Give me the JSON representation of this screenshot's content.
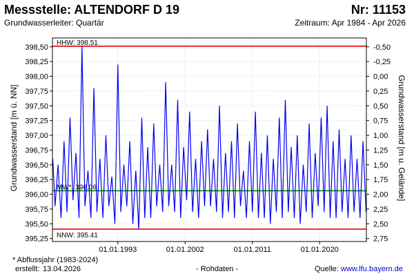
{
  "header": {
    "title_left": "Messstelle: ALTENDORF D 19",
    "title_right": "Nr: 11153",
    "subtitle_left": "Grundwasserleiter: Quartär",
    "subtitle_right": "Zeitraum: Apr 1984 - Apr 2026"
  },
  "footer": {
    "note": "* Abflussjahr (1983-2024)",
    "created_label": "erstellt:",
    "created_date": "13.04.2026",
    "center": "- Rohdaten -",
    "source_label": "Quelle:",
    "source_url": "www.lfu.bayern.de"
  },
  "colors": {
    "series": "#0000ee",
    "hhw": "#ee0000",
    "mw": "#008800",
    "nnw": "#ee0000",
    "grid": "#bdbdbd"
  },
  "chart_data": {
    "type": "line",
    "ylabel_left": "Grundwasserstand [m ü. NN]",
    "ylabel_right": "Grundwasserstand [m u. Gelände]",
    "ylim": [
      395.2,
      398.65
    ],
    "xlim": [
      "1984-04",
      "2026-04"
    ],
    "y_ticks": [
      "395,25",
      "395,50",
      "395,75",
      "396,00",
      "396,25",
      "396,50",
      "396,75",
      "397,00",
      "397,25",
      "397,50",
      "397,75",
      "398,00",
      "398,25",
      "398,50"
    ],
    "y2_ticks": [
      "-0,50",
      "-0,25",
      "0,00",
      "0,25",
      "0,50",
      "0,75",
      "1,00",
      "1,25",
      "1,50",
      "1,75",
      "2,00",
      "2,25",
      "2,50",
      "2,75"
    ],
    "x_ticks": [
      "01.01.1993",
      "01.01.2002",
      "01.01.2011",
      "01.01.2020"
    ],
    "grid": true,
    "reference_lines": [
      {
        "label": "HHW: 398.51",
        "value": 398.51
      },
      {
        "label": "MW*: 396.06",
        "value": 396.06
      },
      {
        "label": "NNW: 395.41",
        "value": 395.41
      }
    ],
    "series": [
      {
        "x": [
          1984.3,
          1984.6,
          1985.0,
          1985.4,
          1985.8,
          1986.2,
          1986.6,
          1987.0,
          1987.4,
          1987.8,
          1988.2,
          1988.6,
          1989.0,
          1989.4,
          1989.8,
          1990.2,
          1990.6,
          1991.0,
          1991.4,
          1991.8,
          1992.2,
          1992.6,
          1993.0,
          1993.4,
          1993.8,
          1994.2,
          1994.6,
          1995.0,
          1995.4,
          1995.8,
          1996.2,
          1996.6,
          1997.0,
          1997.4,
          1997.8,
          1998.2,
          1998.6,
          1999.0,
          1999.4,
          1999.8,
          2000.2,
          2000.6,
          2001.0,
          2001.4,
          2001.8,
          2002.2,
          2002.6,
          2003.0,
          2003.4,
          2003.8,
          2004.2,
          2004.6,
          2005.0,
          2005.4,
          2005.8,
          2006.2,
          2006.6,
          2007.0,
          2007.4,
          2007.8,
          2008.2,
          2008.6,
          2009.0,
          2009.4,
          2009.8,
          2010.2,
          2010.6,
          2011.0,
          2011.4,
          2011.8,
          2012.2,
          2012.6,
          2013.0,
          2013.4,
          2013.8,
          2014.2,
          2014.6,
          2015.0,
          2015.4,
          2015.8,
          2016.2,
          2016.6,
          2017.0,
          2017.4,
          2017.8,
          2018.2,
          2018.6,
          2019.0,
          2019.4,
          2019.8,
          2020.2,
          2020.6,
          2021.0,
          2021.4,
          2021.8,
          2022.2,
          2022.6,
          2023.0,
          2023.4,
          2023.8,
          2024.2,
          2024.6,
          2025.0,
          2025.4,
          2025.8,
          2026.2
        ],
        "y": [
          396.6,
          395.8,
          396.5,
          395.6,
          396.9,
          395.7,
          397.3,
          395.9,
          396.7,
          395.6,
          398.51,
          395.8,
          396.4,
          395.6,
          397.8,
          395.7,
          396.6,
          395.6,
          397.0,
          395.8,
          396.3,
          395.5,
          398.2,
          395.7,
          396.5,
          395.8,
          396.9,
          395.5,
          396.4,
          395.41,
          397.3,
          395.6,
          396.8,
          395.6,
          397.2,
          395.8,
          396.5,
          395.7,
          397.9,
          395.8,
          396.5,
          395.7,
          397.6,
          395.6,
          396.8,
          395.9,
          397.4,
          395.7,
          396.6,
          395.6,
          396.9,
          395.8,
          397.1,
          395.8,
          396.6,
          395.7,
          397.5,
          395.6,
          396.7,
          395.7,
          396.9,
          395.6,
          397.2,
          395.8,
          396.4,
          395.6,
          396.9,
          395.7,
          397.4,
          395.6,
          396.7,
          395.6,
          397.0,
          395.5,
          396.6,
          395.7,
          397.3,
          395.6,
          397.6,
          395.7,
          396.8,
          395.6,
          397.0,
          395.5,
          396.5,
          395.7,
          397.2,
          395.6,
          396.7,
          395.8,
          397.3,
          395.7,
          397.5,
          395.6,
          396.9,
          395.6,
          397.1,
          395.7,
          396.6,
          395.6,
          397.0,
          395.7,
          396.6,
          395.6,
          396.9,
          395.7
        ]
      }
    ]
  }
}
